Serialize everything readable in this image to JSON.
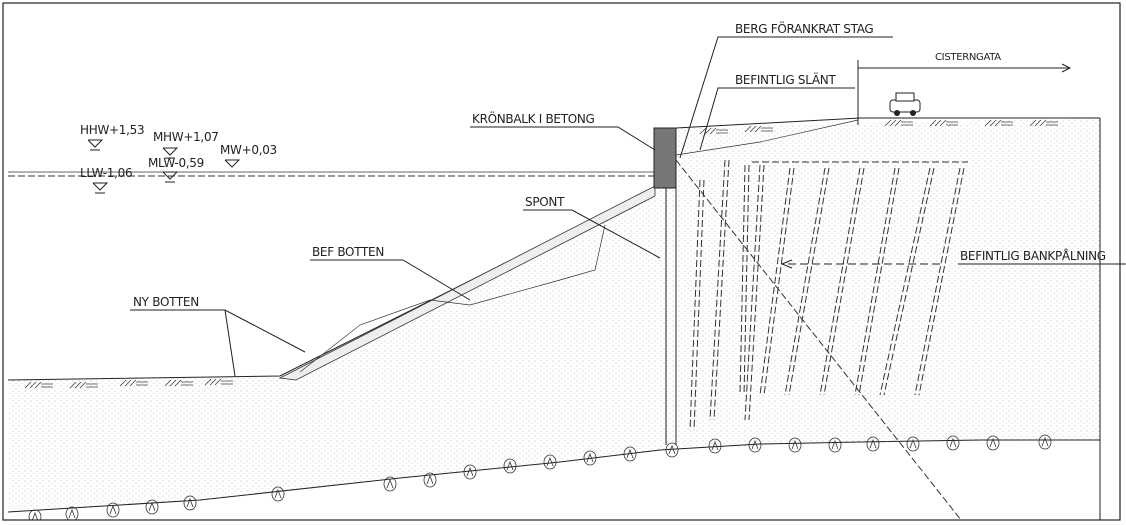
{
  "labels": {
    "berg": "BERG FÖRANKRAT STAG",
    "cisterngata": "CISTERNGATA",
    "slant": "BEFINTLIG SLÄNT",
    "hhw": "HHW+1,53",
    "mhw": "MHW+1,07",
    "mw": "MW+0,03",
    "kronbalk": "KRÖNBALK I BETONG",
    "llw": "LLW-1,06",
    "mlw": "MLW-0,59",
    "spont": "SPONT",
    "befbotten": "BEF BOTTEN",
    "bankpalning": "BEFINTLIG BANKPÅLNING",
    "nybotten": "NY BOTTEN"
  }
}
